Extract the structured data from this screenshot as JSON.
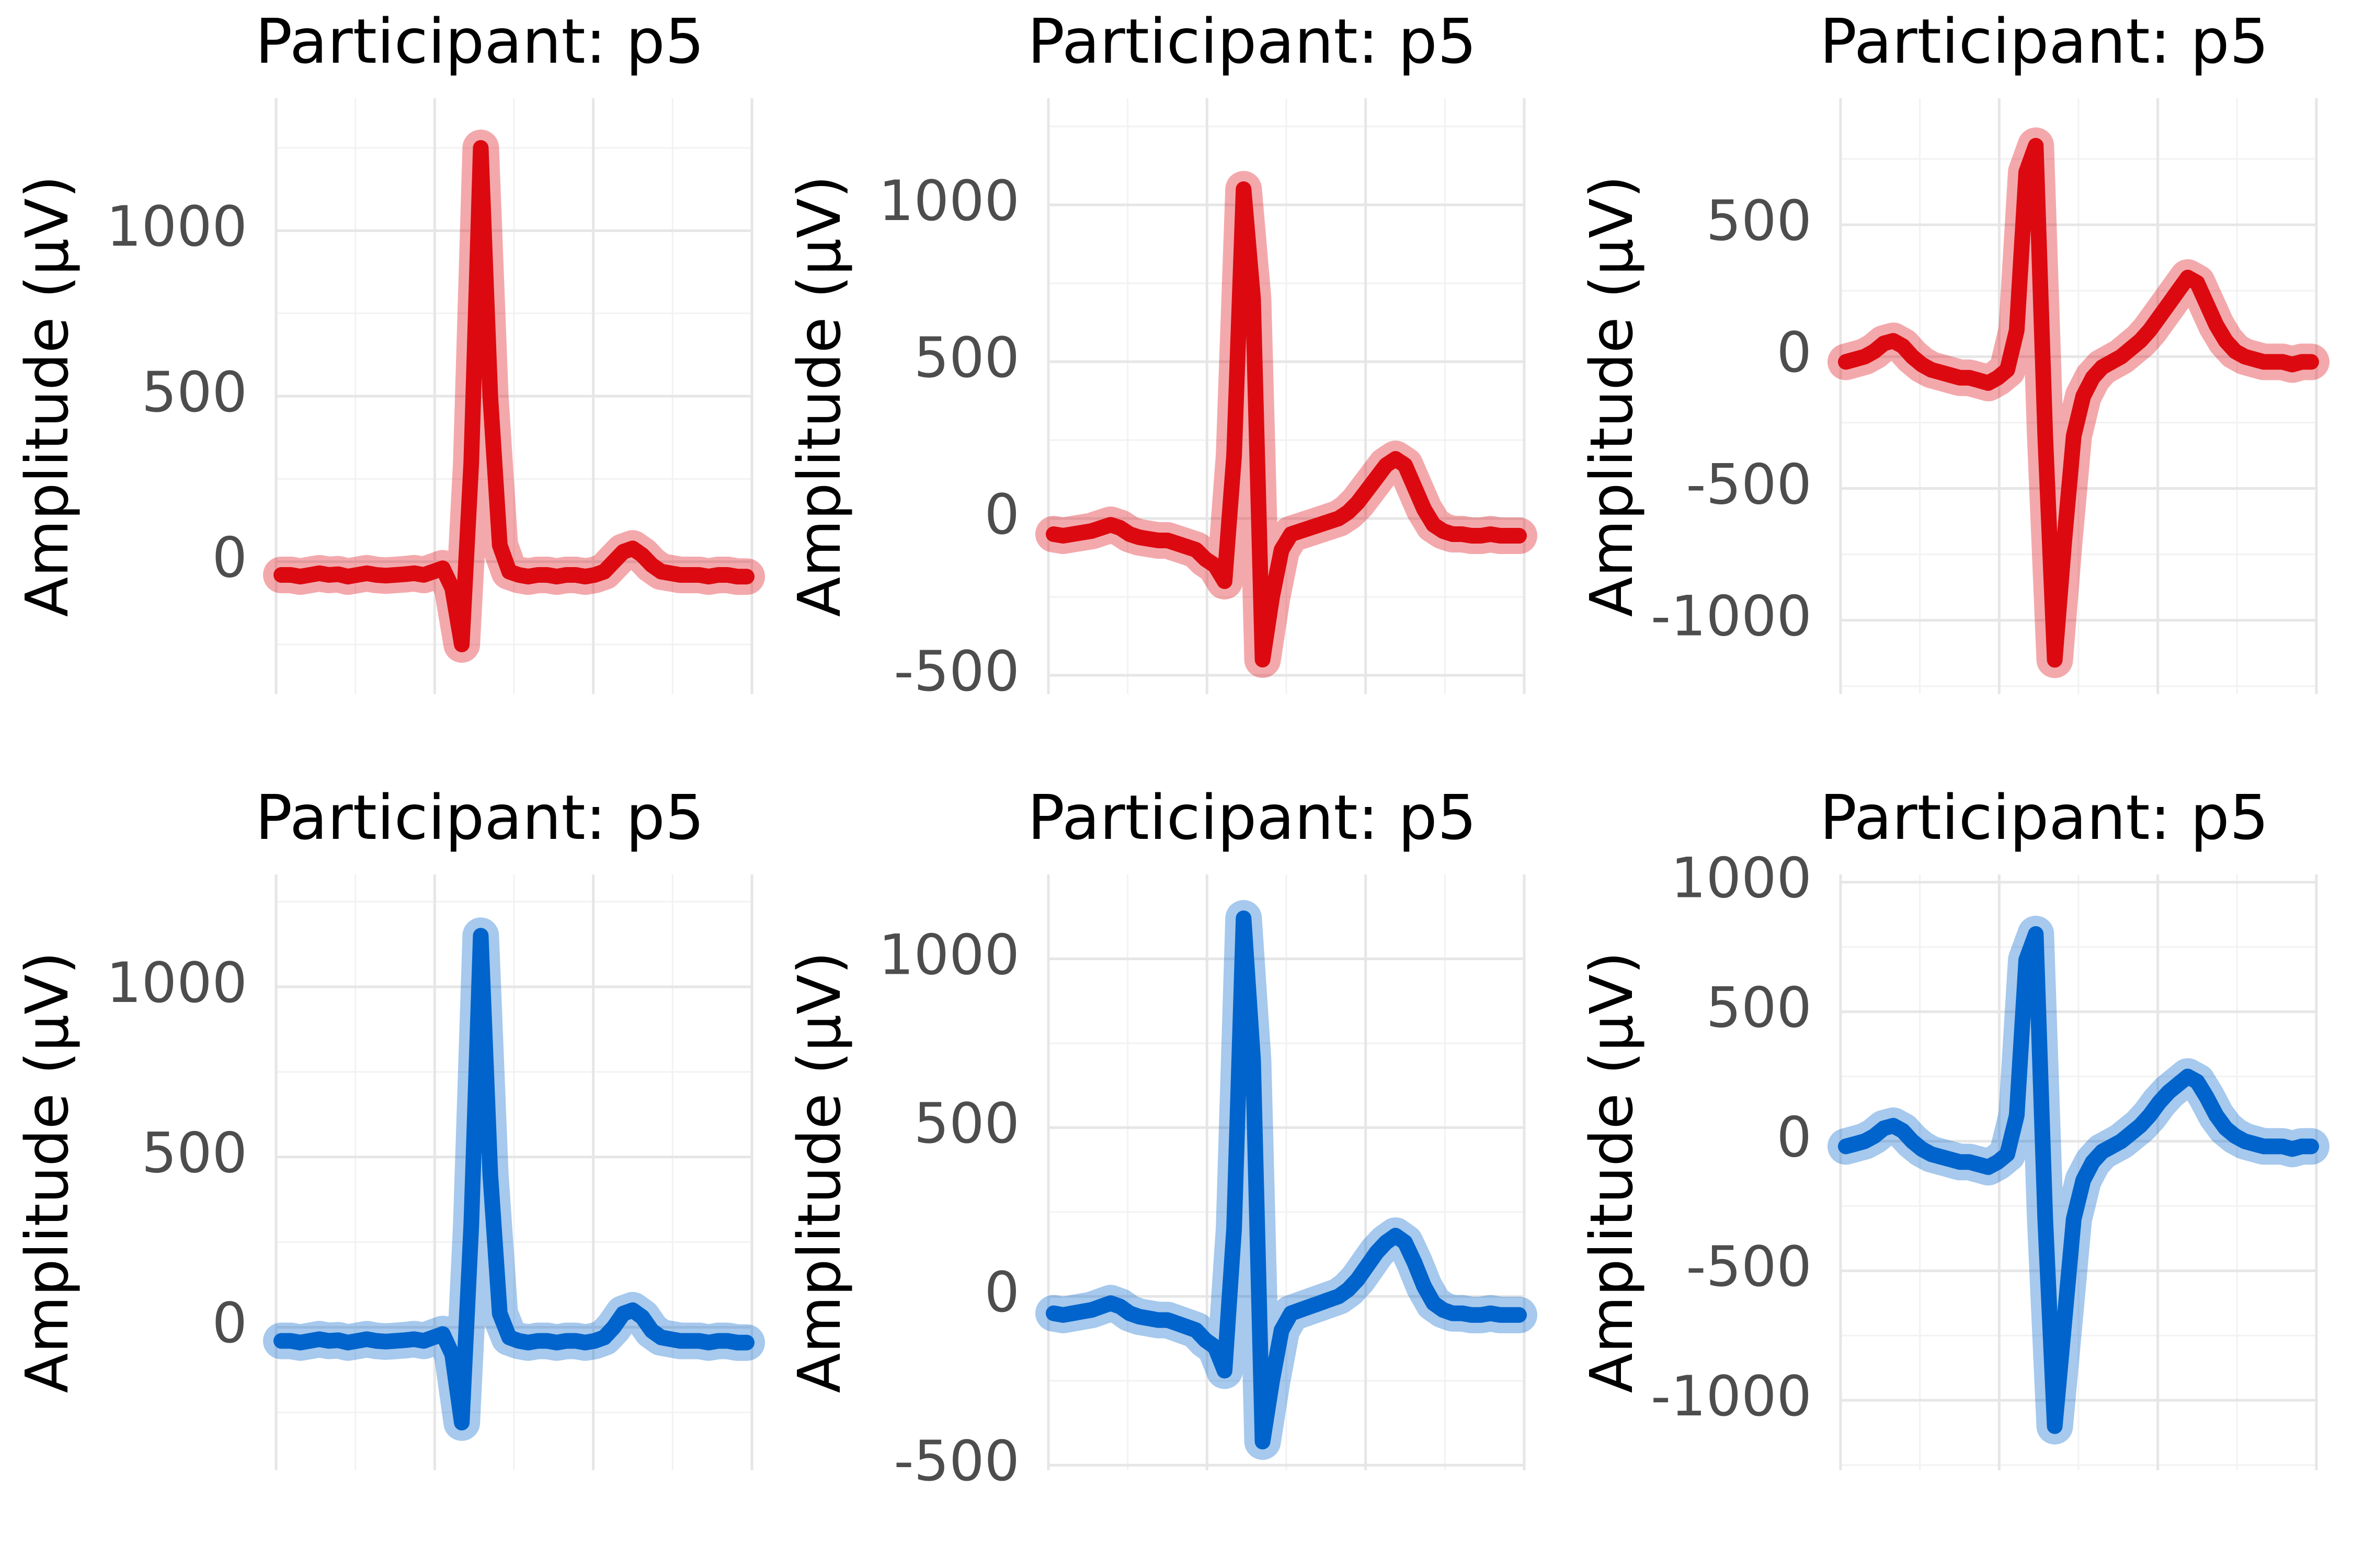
{
  "chart_data": [
    {
      "type": "line",
      "title": "Participant: p5",
      "y_label": "Amplitude (µV)",
      "color": "#dc0a10",
      "ylim": [
        -400,
        1400
      ],
      "yticks": [
        0,
        500,
        1000
      ],
      "grid": true,
      "values": [
        -40,
        -40,
        -45,
        -40,
        -35,
        -40,
        -38,
        -45,
        -40,
        -35,
        -40,
        -42,
        -40,
        -38,
        -35,
        -40,
        -30,
        -20,
        -80,
        -250,
        300,
        1250,
        500,
        50,
        -30,
        -40,
        -45,
        -40,
        -40,
        -45,
        -40,
        -40,
        -45,
        -40,
        -30,
        0,
        30,
        40,
        20,
        -10,
        -30,
        -35,
        -40,
        -40,
        -40,
        -45,
        -40,
        -40,
        -45,
        -45
      ]
    },
    {
      "type": "line",
      "title": "Participant: p5",
      "y_label": "Amplitude (µV)",
      "color": "#dc0a10",
      "ylim": [
        -560,
        1340
      ],
      "yticks": [
        -500,
        0,
        500,
        1000
      ],
      "grid": true,
      "values": [
        -50,
        -55,
        -50,
        -45,
        -40,
        -30,
        -20,
        -30,
        -50,
        -60,
        -65,
        -70,
        -70,
        -80,
        -90,
        -100,
        -130,
        -150,
        -200,
        200,
        1050,
        700,
        -450,
        -250,
        -100,
        -50,
        -40,
        -30,
        -20,
        -10,
        0,
        20,
        50,
        90,
        130,
        170,
        190,
        170,
        100,
        30,
        -20,
        -40,
        -50,
        -50,
        -55,
        -55,
        -50,
        -55,
        -55,
        -55
      ]
    },
    {
      "type": "line",
      "title": "Participant: p5",
      "y_label": "Amplitude (µV)",
      "color": "#dc0a10",
      "ylim": [
        -1280,
        980
      ],
      "yticks": [
        -1000,
        -500,
        0,
        500
      ],
      "grid": true,
      "values": [
        -20,
        -10,
        0,
        20,
        50,
        60,
        40,
        0,
        -30,
        -50,
        -60,
        -70,
        -80,
        -80,
        -90,
        -100,
        -80,
        -50,
        100,
        700,
        800,
        -300,
        -1150,
        -700,
        -300,
        -150,
        -80,
        -40,
        -20,
        0,
        30,
        60,
        100,
        150,
        200,
        250,
        300,
        280,
        200,
        120,
        60,
        20,
        0,
        -10,
        -20,
        -20,
        -20,
        -30,
        -20,
        -20
      ]
    },
    {
      "type": "line",
      "title": "Participant: p5",
      "y_label": "Amplitude (µV)",
      "color": "#0064cc",
      "ylim": [
        -420,
        1330
      ],
      "yticks": [
        0,
        500,
        1000
      ],
      "grid": true,
      "values": [
        -40,
        -40,
        -45,
        -40,
        -35,
        -40,
        -38,
        -45,
        -40,
        -35,
        -40,
        -42,
        -40,
        -38,
        -35,
        -40,
        -30,
        -20,
        -80,
        -280,
        300,
        1150,
        450,
        40,
        -30,
        -40,
        -45,
        -40,
        -40,
        -45,
        -40,
        -40,
        -45,
        -40,
        -30,
        0,
        40,
        50,
        30,
        -10,
        -30,
        -35,
        -40,
        -40,
        -40,
        -45,
        -40,
        -40,
        -45,
        -45
      ]
    },
    {
      "type": "line",
      "title": "Participant: p5",
      "y_label": "Amplitude (µV)",
      "color": "#0064cc",
      "ylim": [
        -515,
        1250
      ],
      "yticks": [
        -500,
        0,
        500,
        1000
      ],
      "grid": true,
      "values": [
        -50,
        -55,
        -50,
        -45,
        -40,
        -30,
        -20,
        -30,
        -50,
        -60,
        -65,
        -70,
        -70,
        -80,
        -90,
        -100,
        -130,
        -150,
        -220,
        200,
        1120,
        700,
        -430,
        -250,
        -100,
        -50,
        -40,
        -30,
        -20,
        -10,
        0,
        20,
        50,
        90,
        130,
        160,
        180,
        160,
        100,
        30,
        -20,
        -40,
        -50,
        -50,
        -55,
        -55,
        -50,
        -55,
        -55,
        -55
      ]
    },
    {
      "type": "line",
      "title": "Participant: p5",
      "y_label": "Amplitude (µV)",
      "color": "#0064cc",
      "ylim": [
        -1270,
        1030
      ],
      "yticks": [
        -1000,
        -500,
        0,
        500,
        1000
      ],
      "grid": true,
      "values": [
        -20,
        -10,
        0,
        20,
        50,
        60,
        40,
        0,
        -30,
        -50,
        -60,
        -70,
        -80,
        -80,
        -90,
        -100,
        -80,
        -50,
        100,
        700,
        800,
        -300,
        -1100,
        -700,
        -300,
        -150,
        -80,
        -40,
        -20,
        0,
        30,
        60,
        100,
        150,
        190,
        220,
        250,
        230,
        170,
        100,
        50,
        20,
        0,
        -10,
        -20,
        -20,
        -20,
        -30,
        -20,
        -20
      ]
    }
  ]
}
